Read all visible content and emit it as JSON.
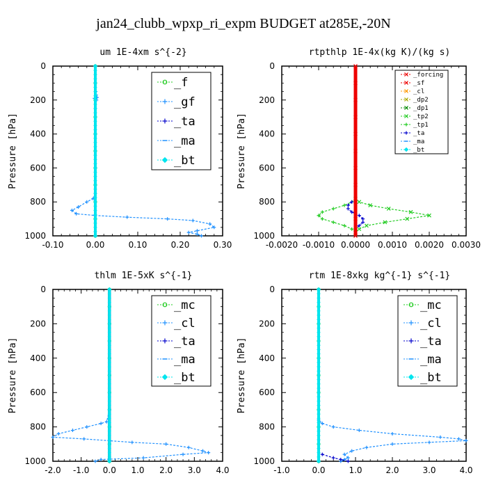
{
  "title": "jan24_clubb_wpxp_ri_expm  BUDGET at285E,-20N",
  "colors": {
    "green": "#22cc22",
    "blue": "#0000cc",
    "sky": "#1e90ff",
    "cyan": "#00e5ee",
    "red": "#ee0000",
    "orange": "#ff9900",
    "olive": "#aaaa00",
    "darkgreen": "#008800"
  },
  "chart_data": [
    {
      "type": "line",
      "title": "um   1E-4xm s^{-2}",
      "ylabel": "Pressure [hPa]",
      "xlim": [
        -0.1,
        0.3
      ],
      "ylim": [
        1000,
        0
      ],
      "xticks": [
        "-0.10",
        "0.00",
        "0.10",
        "0.20",
        "0.30"
      ],
      "xtick_values": [
        -0.1,
        0.0,
        0.1,
        0.2,
        0.3
      ],
      "yticks": [
        "0",
        "200",
        "400",
        "600",
        "800",
        "1000"
      ],
      "ytick_values": [
        0,
        200,
        400,
        600,
        800,
        1000
      ],
      "legend_size": "large",
      "legend": [
        "_f",
        "_gf",
        "_ta",
        "_ma",
        "_bt"
      ],
      "series": [
        {
          "name": "_f",
          "color": "green",
          "y": [
            0,
            100,
            200,
            300,
            400,
            500,
            600,
            700,
            800,
            900,
            1000
          ],
          "x": [
            0,
            0,
            0,
            0,
            0,
            0,
            0,
            0,
            0,
            0,
            0
          ]
        },
        {
          "name": "_gf",
          "color": "sky",
          "y": [
            0,
            100,
            150,
            170,
            185,
            190,
            200,
            250,
            400,
            600,
            750,
            780,
            800,
            830,
            850,
            870,
            880,
            890,
            900,
            910,
            930,
            950,
            970,
            980,
            990,
            1000
          ],
          "x": [
            0,
            0,
            0.001,
            0.002,
            0.004,
            -0.002,
            0.003,
            0,
            0,
            0,
            0,
            -0.005,
            -0.02,
            -0.04,
            -0.055,
            -0.045,
            0,
            0.075,
            0.17,
            0.23,
            0.27,
            0.28,
            0.24,
            0.22,
            0.24,
            0.25
          ]
        },
        {
          "name": "_ta",
          "color": "blue",
          "y": [
            0,
            1000
          ],
          "x": [
            0,
            0
          ]
        },
        {
          "name": "_ma",
          "color": "sky",
          "y": [
            0,
            1000
          ],
          "x": [
            0,
            0
          ]
        },
        {
          "name": "_bt",
          "color": "cyan",
          "y": [
            0,
            1000
          ],
          "x": [
            0,
            0
          ]
        }
      ]
    },
    {
      "type": "line",
      "title": "rtpthlp   1E-4x(kg K)/(kg s)",
      "ylabel": "Pressure [hPa]",
      "xlim": [
        -0.002,
        0.003
      ],
      "ylim": [
        1000,
        0
      ],
      "xticks": [
        "-0.0020",
        "-0.0010",
        "0.0000",
        "0.0010",
        "0.0020",
        "0.0030"
      ],
      "xtick_values": [
        -0.002,
        -0.001,
        0.0,
        0.001,
        0.002,
        0.003
      ],
      "yticks": [
        "0",
        "200",
        "400",
        "600",
        "800",
        "1000"
      ],
      "ytick_values": [
        0,
        200,
        400,
        600,
        800,
        1000
      ],
      "legend_size": "small",
      "legend": [
        "_forcing",
        "_sf",
        "_cl",
        "_dp2",
        "_dp1",
        "_tp2",
        "_tp1",
        "_ta",
        "_ma",
        "_bt"
      ],
      "series": [
        {
          "name": "_dp1",
          "color": "green",
          "y": [
            780,
            800,
            820,
            840,
            860,
            880,
            900,
            920,
            940,
            960,
            980
          ],
          "x": [
            0,
            0.0001,
            0.0004,
            0.0009,
            0.0015,
            0.002,
            0.0014,
            0.0008,
            0.0003,
            0.0001,
            0
          ]
        },
        {
          "name": "_tp1",
          "color": "green",
          "y": [
            780,
            800,
            820,
            840,
            860,
            880,
            900,
            920,
            940,
            960,
            980
          ],
          "x": [
            0,
            -0.0001,
            -0.0003,
            -0.0006,
            -0.0009,
            -0.001,
            -0.0009,
            -0.0006,
            -0.0003,
            -0.0001,
            0
          ]
        },
        {
          "name": "_ta",
          "color": "blue",
          "y": [
            800,
            820,
            840,
            860,
            880,
            900,
            920,
            940,
            960
          ],
          "x": [
            -0.0001,
            -0.0002,
            -0.0002,
            -0.0001,
            0.0001,
            0.0002,
            0.0002,
            0.0001,
            0
          ]
        },
        {
          "name": "_forcing",
          "color": "red",
          "y": [
            0,
            100,
            200,
            300,
            400,
            500,
            600,
            700,
            800,
            900,
            1000
          ],
          "x": [
            0,
            0,
            0,
            0,
            0,
            0,
            0,
            0,
            0,
            0,
            0
          ]
        }
      ]
    },
    {
      "type": "line",
      "title": "thlm   1E-5xK s^{-1}",
      "ylabel": "Pressure [hPa]",
      "xlim": [
        -2.0,
        4.0
      ],
      "ylim": [
        1000,
        0
      ],
      "xticks": [
        "-2.0",
        "-1.0",
        "0.0",
        "1.0",
        "2.0",
        "3.0",
        "4.0"
      ],
      "xtick_values": [
        -2,
        -1,
        0,
        1,
        2,
        3,
        4
      ],
      "yticks": [
        "0",
        "200",
        "400",
        "600",
        "800",
        "1000"
      ],
      "ytick_values": [
        0,
        200,
        400,
        600,
        800,
        1000
      ],
      "legend_size": "large",
      "legend": [
        "_mc",
        "_cl",
        "_ta",
        "_ma",
        "_bt"
      ],
      "series": [
        {
          "name": "_mc",
          "color": "green",
          "y": [
            0,
            100,
            200,
            300,
            400,
            500,
            600,
            700,
            800,
            900,
            1000
          ],
          "x": [
            0,
            0,
            0,
            0,
            0,
            0,
            0,
            0,
            0,
            0,
            0
          ]
        },
        {
          "name": "_cl",
          "color": "sky",
          "y": [
            0,
            700,
            770,
            780,
            800,
            820,
            840,
            860,
            870,
            890,
            900,
            920,
            940,
            950,
            960,
            980,
            990,
            1000
          ],
          "x": [
            0,
            0,
            -0.1,
            -0.3,
            -0.8,
            -1.3,
            -1.8,
            -2.0,
            -0.9,
            0.8,
            2.0,
            2.8,
            3.3,
            3.5,
            2.6,
            1.2,
            -0.3,
            -0.5
          ]
        },
        {
          "name": "_ta",
          "color": "blue",
          "y": [
            0,
            1000
          ],
          "x": [
            0,
            0
          ]
        },
        {
          "name": "_bt",
          "color": "cyan",
          "y": [
            0,
            1000
          ],
          "x": [
            0,
            0
          ]
        }
      ]
    },
    {
      "type": "line",
      "title": "rtm   1E-8xkg kg^{-1} s^{-1}",
      "ylabel": "Pressure [hPa]",
      "xlim": [
        -1.0,
        4.0
      ],
      "ylim": [
        1000,
        0
      ],
      "xticks": [
        "-1.0",
        "0.0",
        "1.0",
        "2.0",
        "3.0",
        "4.0"
      ],
      "xtick_values": [
        -1,
        0,
        1,
        2,
        3,
        4
      ],
      "yticks": [
        "0",
        "200",
        "400",
        "600",
        "800",
        "1000"
      ],
      "ytick_values": [
        0,
        200,
        400,
        600,
        800,
        1000
      ],
      "legend_size": "large",
      "legend": [
        "_mc",
        "_cl",
        "_ta",
        "_ma",
        "_bt"
      ],
      "series": [
        {
          "name": "_mc",
          "color": "green",
          "y": [
            0,
            100,
            200,
            300,
            400,
            500,
            600,
            700,
            800,
            900,
            1000
          ],
          "x": [
            0,
            0,
            0,
            0,
            0,
            0,
            0,
            0,
            0,
            0,
            0
          ]
        },
        {
          "name": "_cl",
          "color": "sky",
          "y": [
            0,
            760,
            780,
            800,
            820,
            840,
            860,
            870,
            880,
            890,
            900,
            920,
            940,
            960,
            980,
            990,
            1000
          ],
          "x": [
            0,
            0,
            0.1,
            0.4,
            1.1,
            2.0,
            3.3,
            3.8,
            4.0,
            3.0,
            2.0,
            1.3,
            0.9,
            0.7,
            0.8,
            0.7,
            0.6
          ]
        },
        {
          "name": "_ta",
          "color": "blue",
          "y": [
            960,
            980,
            990,
            1000
          ],
          "x": [
            0.1,
            0.4,
            0.6,
            0.8
          ]
        },
        {
          "name": "_bt",
          "color": "cyan",
          "y": [
            0,
            1000
          ],
          "x": [
            0,
            0
          ]
        }
      ]
    }
  ]
}
